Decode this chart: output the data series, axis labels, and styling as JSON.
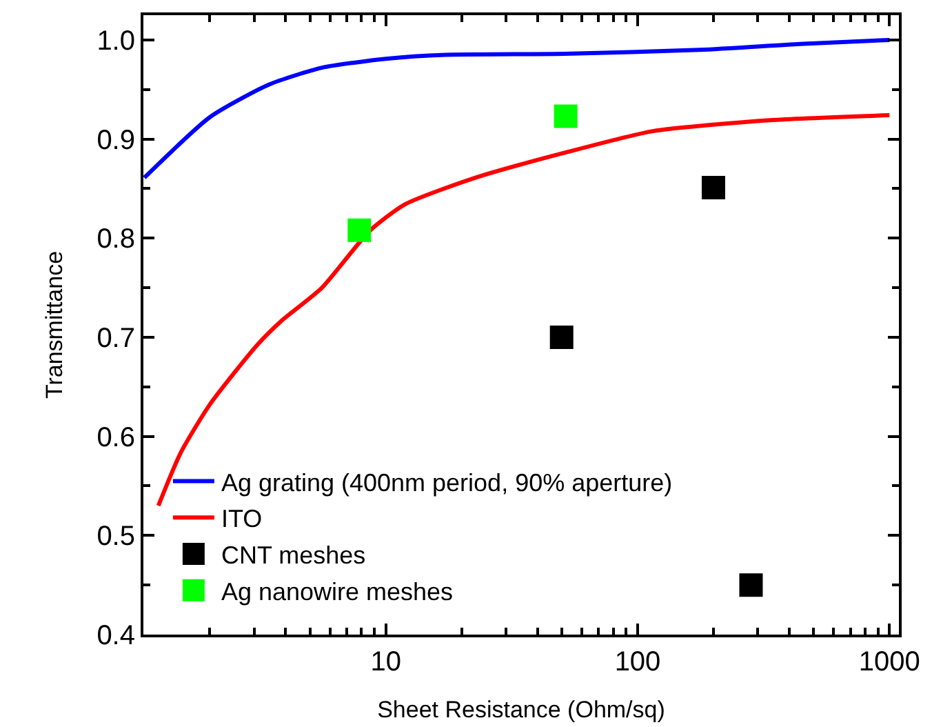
{
  "chart_data": {
    "type": "line",
    "xlabel": "Sheet Resistance (Ohm/sq)",
    "ylabel": "Transmittance",
    "log": "x",
    "xlim": [
      1.09,
      1090
    ],
    "xticks": [
      10,
      100,
      1000
    ],
    "ylim": [
      0.4,
      1.025
    ],
    "yticks": [
      {
        "value": 0.4,
        "label": "0.4"
      },
      {
        "value": 0.5,
        "label": "0.5"
      },
      {
        "value": 0.6,
        "label": "0.6"
      },
      {
        "value": 0.7,
        "label": "0.7"
      },
      {
        "value": 0.8,
        "label": "0.8"
      },
      {
        "value": 0.9,
        "label": "0.9"
      },
      {
        "value": 1.0,
        "label": "1.0"
      }
    ],
    "grid": false,
    "legend": "bottom left",
    "marker": "none",
    "line_style": "solid",
    "series": [
      {
        "name": "Ag grating (400nm period, 90% aperture)",
        "color": "#0000ff",
        "x": [
          1.1,
          2.0,
          3.44,
          5.58,
          10,
          17.3,
          51,
          176,
          441,
          1000
        ],
        "values": [
          0.861,
          0.922,
          0.955,
          0.972,
          0.981,
          0.985,
          0.986,
          0.99,
          0.996,
          1.0
        ]
      },
      {
        "name": "ITO",
        "color": "#ff0000",
        "x": [
          1.25,
          1.53,
          2.0,
          3.08,
          3.83,
          5.58,
          8.6,
          11.9,
          22.7,
          51,
          115,
          336,
          1000
        ],
        "values": [
          0.53,
          0.583,
          0.632,
          0.692,
          0.716,
          0.75,
          0.807,
          0.834,
          0.861,
          0.886,
          0.908,
          0.919,
          0.924
        ]
      },
      {
        "name": "CNT meshes",
        "type": "scatter",
        "marker": "square",
        "color": "#000000",
        "x": [
          49.9,
          200,
          282
        ],
        "values": [
          0.7,
          0.851,
          0.45
        ]
      },
      {
        "name": "Ag nanowire meshes",
        "type": "scatter",
        "marker": "square",
        "color": "#00ff00",
        "x": [
          7.85,
          51.8
        ],
        "values": [
          0.808,
          0.923
        ]
      }
    ]
  }
}
